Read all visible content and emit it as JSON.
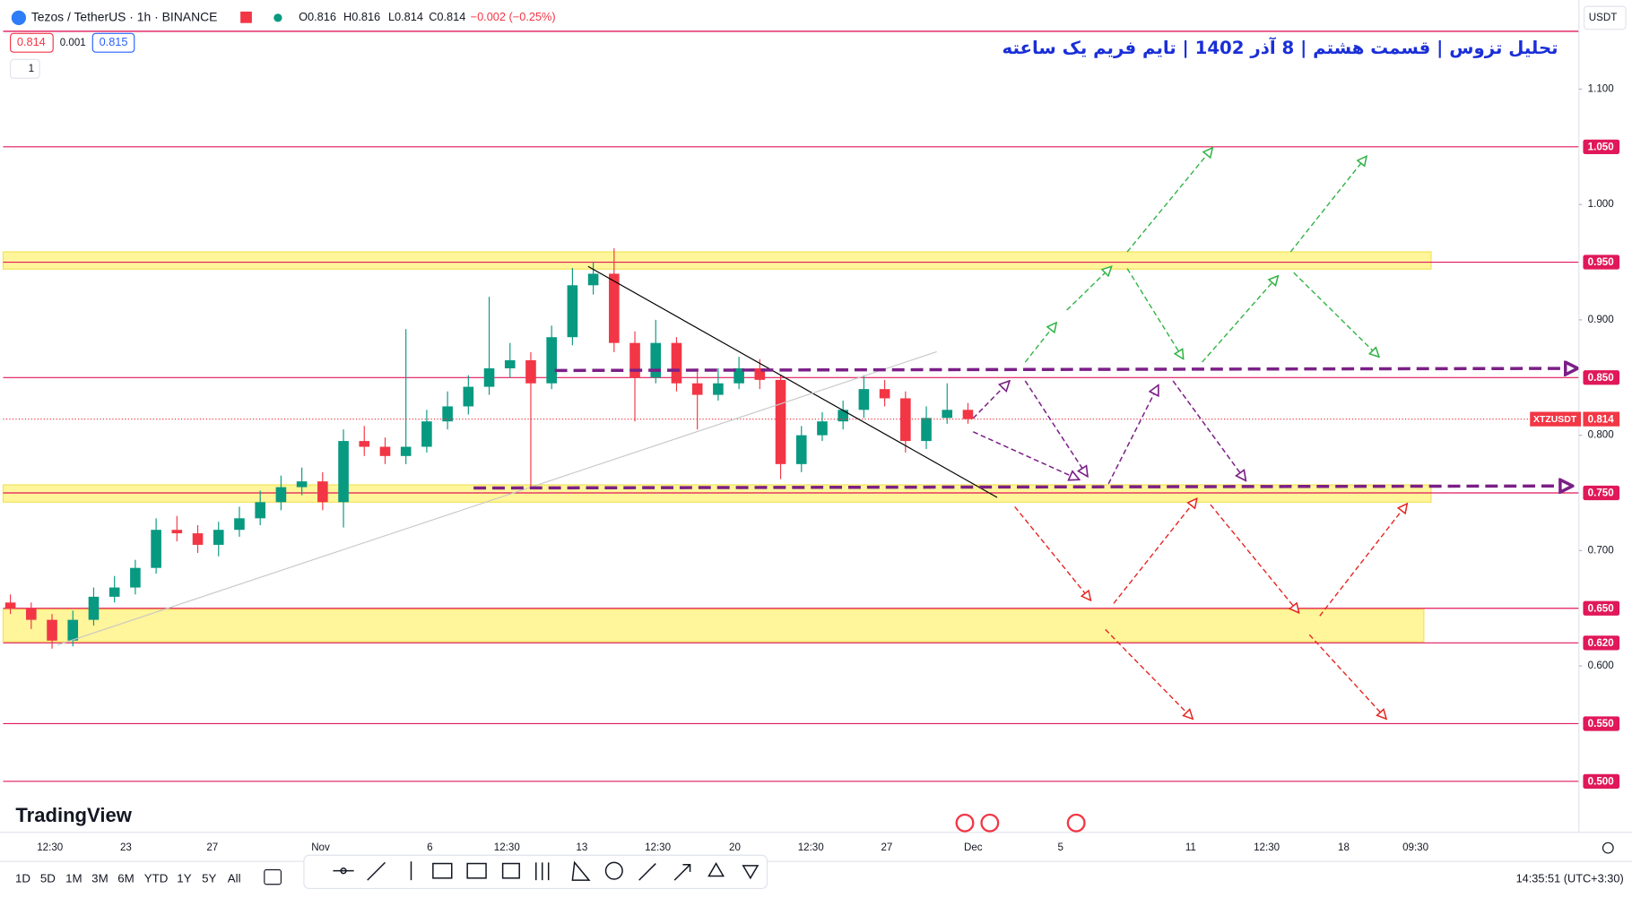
{
  "header": {
    "symbol": "Tezos / TetherUS · 1h · BINANCE",
    "open": "O0.816",
    "high": "H0.816",
    "low": "L0.814",
    "close": "C0.814",
    "change": "−0.002 (−0.25%)",
    "sell": "0.814",
    "spread": "0.001",
    "buy": "0.815",
    "indicator": "1",
    "currency": "USDT"
  },
  "title": "تحلیل تزوس | قسمت هشتم | 8 آذر 1402 | تایم فریم یک ساعته",
  "chart": {
    "ylim": [
      0.4558,
      1.1501
    ],
    "yticks": [
      {
        "value": 1.1,
        "label": "1.100"
      },
      {
        "value": 1.0,
        "label": "1.000"
      },
      {
        "value": 0.9,
        "label": "0.900"
      },
      {
        "value": 0.8,
        "label": "0.800"
      },
      {
        "value": 0.7,
        "label": "0.700"
      },
      {
        "value": 0.6,
        "label": "0.600"
      }
    ],
    "levels": [
      {
        "value": 1.05,
        "label": "1.050"
      },
      {
        "value": 0.95,
        "label": "0.950"
      },
      {
        "value": 0.85,
        "label": "0.850"
      },
      {
        "value": 0.75,
        "label": "0.750"
      },
      {
        "value": 0.65,
        "label": "0.650"
      },
      {
        "value": 0.62,
        "label": "0.620"
      },
      {
        "value": 0.55,
        "label": "0.550"
      },
      {
        "value": 0.5,
        "label": "0.500"
      }
    ],
    "level_color": "#e0185a",
    "zones": [
      [
        0.944,
        0.959
      ],
      [
        0.742,
        0.757
      ],
      [
        0.621,
        0.649
      ]
    ],
    "zone_color": "#fff59a",
    "last": {
      "value": 0.814,
      "label": "0.814"
    },
    "symbol_tag": "XTZUSDT",
    "up_color": "#089981",
    "down_color": "#f23645",
    "candles": {
      "open": [
        0.655,
        0.65,
        0.64,
        0.622,
        0.64,
        0.66,
        0.668,
        0.685,
        0.718,
        0.715,
        0.705,
        0.718,
        0.728,
        0.742,
        0.755,
        0.76,
        0.742,
        0.795,
        0.79,
        0.782,
        0.79,
        0.812,
        0.825,
        0.842,
        0.858,
        0.865,
        0.845,
        0.885,
        0.93,
        0.94,
        0.88,
        0.85,
        0.88,
        0.845,
        0.835,
        0.845,
        0.858,
        0.848,
        0.775,
        0.8,
        0.812,
        0.822,
        0.84,
        0.832,
        0.795,
        0.815,
        0.822
      ],
      "high": [
        0.662,
        0.655,
        0.645,
        0.648,
        0.668,
        0.678,
        0.692,
        0.728,
        0.73,
        0.722,
        0.725,
        0.738,
        0.752,
        0.765,
        0.772,
        0.768,
        0.805,
        0.808,
        0.798,
        0.892,
        0.822,
        0.838,
        0.852,
        0.92,
        0.88,
        0.872,
        0.895,
        0.945,
        0.95,
        0.962,
        0.89,
        0.9,
        0.885,
        0.855,
        0.858,
        0.868,
        0.866,
        0.852,
        0.808,
        0.82,
        0.83,
        0.852,
        0.848,
        0.838,
        0.825,
        0.845,
        0.828
      ],
      "low": [
        0.645,
        0.632,
        0.615,
        0.617,
        0.635,
        0.655,
        0.662,
        0.68,
        0.708,
        0.698,
        0.695,
        0.712,
        0.722,
        0.735,
        0.748,
        0.735,
        0.72,
        0.782,
        0.775,
        0.775,
        0.785,
        0.805,
        0.818,
        0.835,
        0.85,
        0.755,
        0.84,
        0.878,
        0.922,
        0.872,
        0.812,
        0.845,
        0.838,
        0.805,
        0.83,
        0.84,
        0.84,
        0.762,
        0.768,
        0.795,
        0.805,
        0.815,
        0.825,
        0.785,
        0.788,
        0.81,
        0.81
      ],
      "close": [
        0.65,
        0.64,
        0.622,
        0.64,
        0.66,
        0.668,
        0.685,
        0.718,
        0.715,
        0.705,
        0.718,
        0.728,
        0.742,
        0.755,
        0.76,
        0.742,
        0.795,
        0.79,
        0.782,
        0.79,
        0.812,
        0.825,
        0.842,
        0.858,
        0.865,
        0.845,
        0.885,
        0.93,
        0.94,
        0.88,
        0.85,
        0.88,
        0.845,
        0.835,
        0.845,
        0.858,
        0.848,
        0.775,
        0.8,
        0.812,
        0.822,
        0.84,
        0.832,
        0.795,
        0.815,
        0.822,
        0.814
      ]
    },
    "time_labels": [
      "12:30",
      "23",
      "27",
      "Nov",
      "6",
      "12:30",
      "13",
      "12:30",
      "20",
      "12:30",
      "27",
      "Dec",
      "5",
      "11",
      "12:30",
      "18",
      "09:30"
    ]
  },
  "footer": {
    "logo": "TradingView",
    "timeframes": [
      "1D",
      "5D",
      "1M",
      "3M",
      "6M",
      "YTD",
      "1Y",
      "5Y",
      "All"
    ],
    "clock": "14:35:51 (UTC+3:30)"
  }
}
